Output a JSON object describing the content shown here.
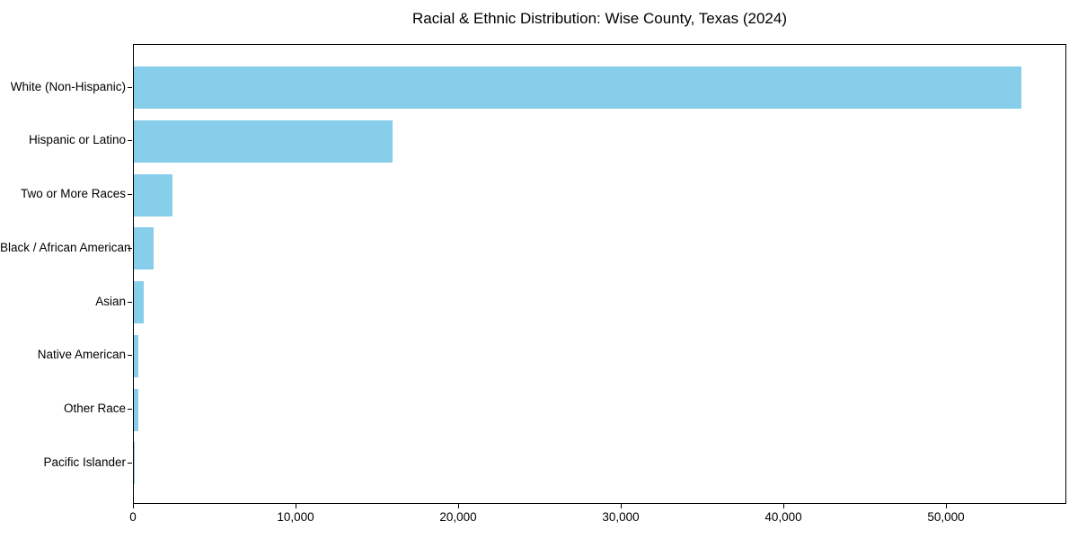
{
  "chart_data": {
    "type": "bar",
    "orientation": "horizontal",
    "title": "Racial & Ethnic Distribution: Wise County, Texas (2024)",
    "categories": [
      "White (Non-Hispanic)",
      "Hispanic or Latino",
      "Two or More Races",
      "Black / African American",
      "Asian",
      "Native American",
      "Other Race",
      "Pacific Islander"
    ],
    "values": [
      54600,
      15900,
      2400,
      1200,
      600,
      300,
      270,
      40
    ],
    "xlabel": "",
    "ylabel": "",
    "xlim": [
      0,
      57400
    ],
    "x_ticks": [
      {
        "value": 0,
        "label": "0"
      },
      {
        "value": 10000,
        "label": "10,000"
      },
      {
        "value": 20000,
        "label": "20,000"
      },
      {
        "value": 30000,
        "label": "30,000"
      },
      {
        "value": 40000,
        "label": "40,000"
      },
      {
        "value": 50000,
        "label": "50,000"
      }
    ],
    "bar_color": "#87CEEB",
    "background_color": "#ffffff",
    "axis_color": "#000000",
    "text_color": "#000000",
    "grid": false,
    "legend": "none"
  }
}
